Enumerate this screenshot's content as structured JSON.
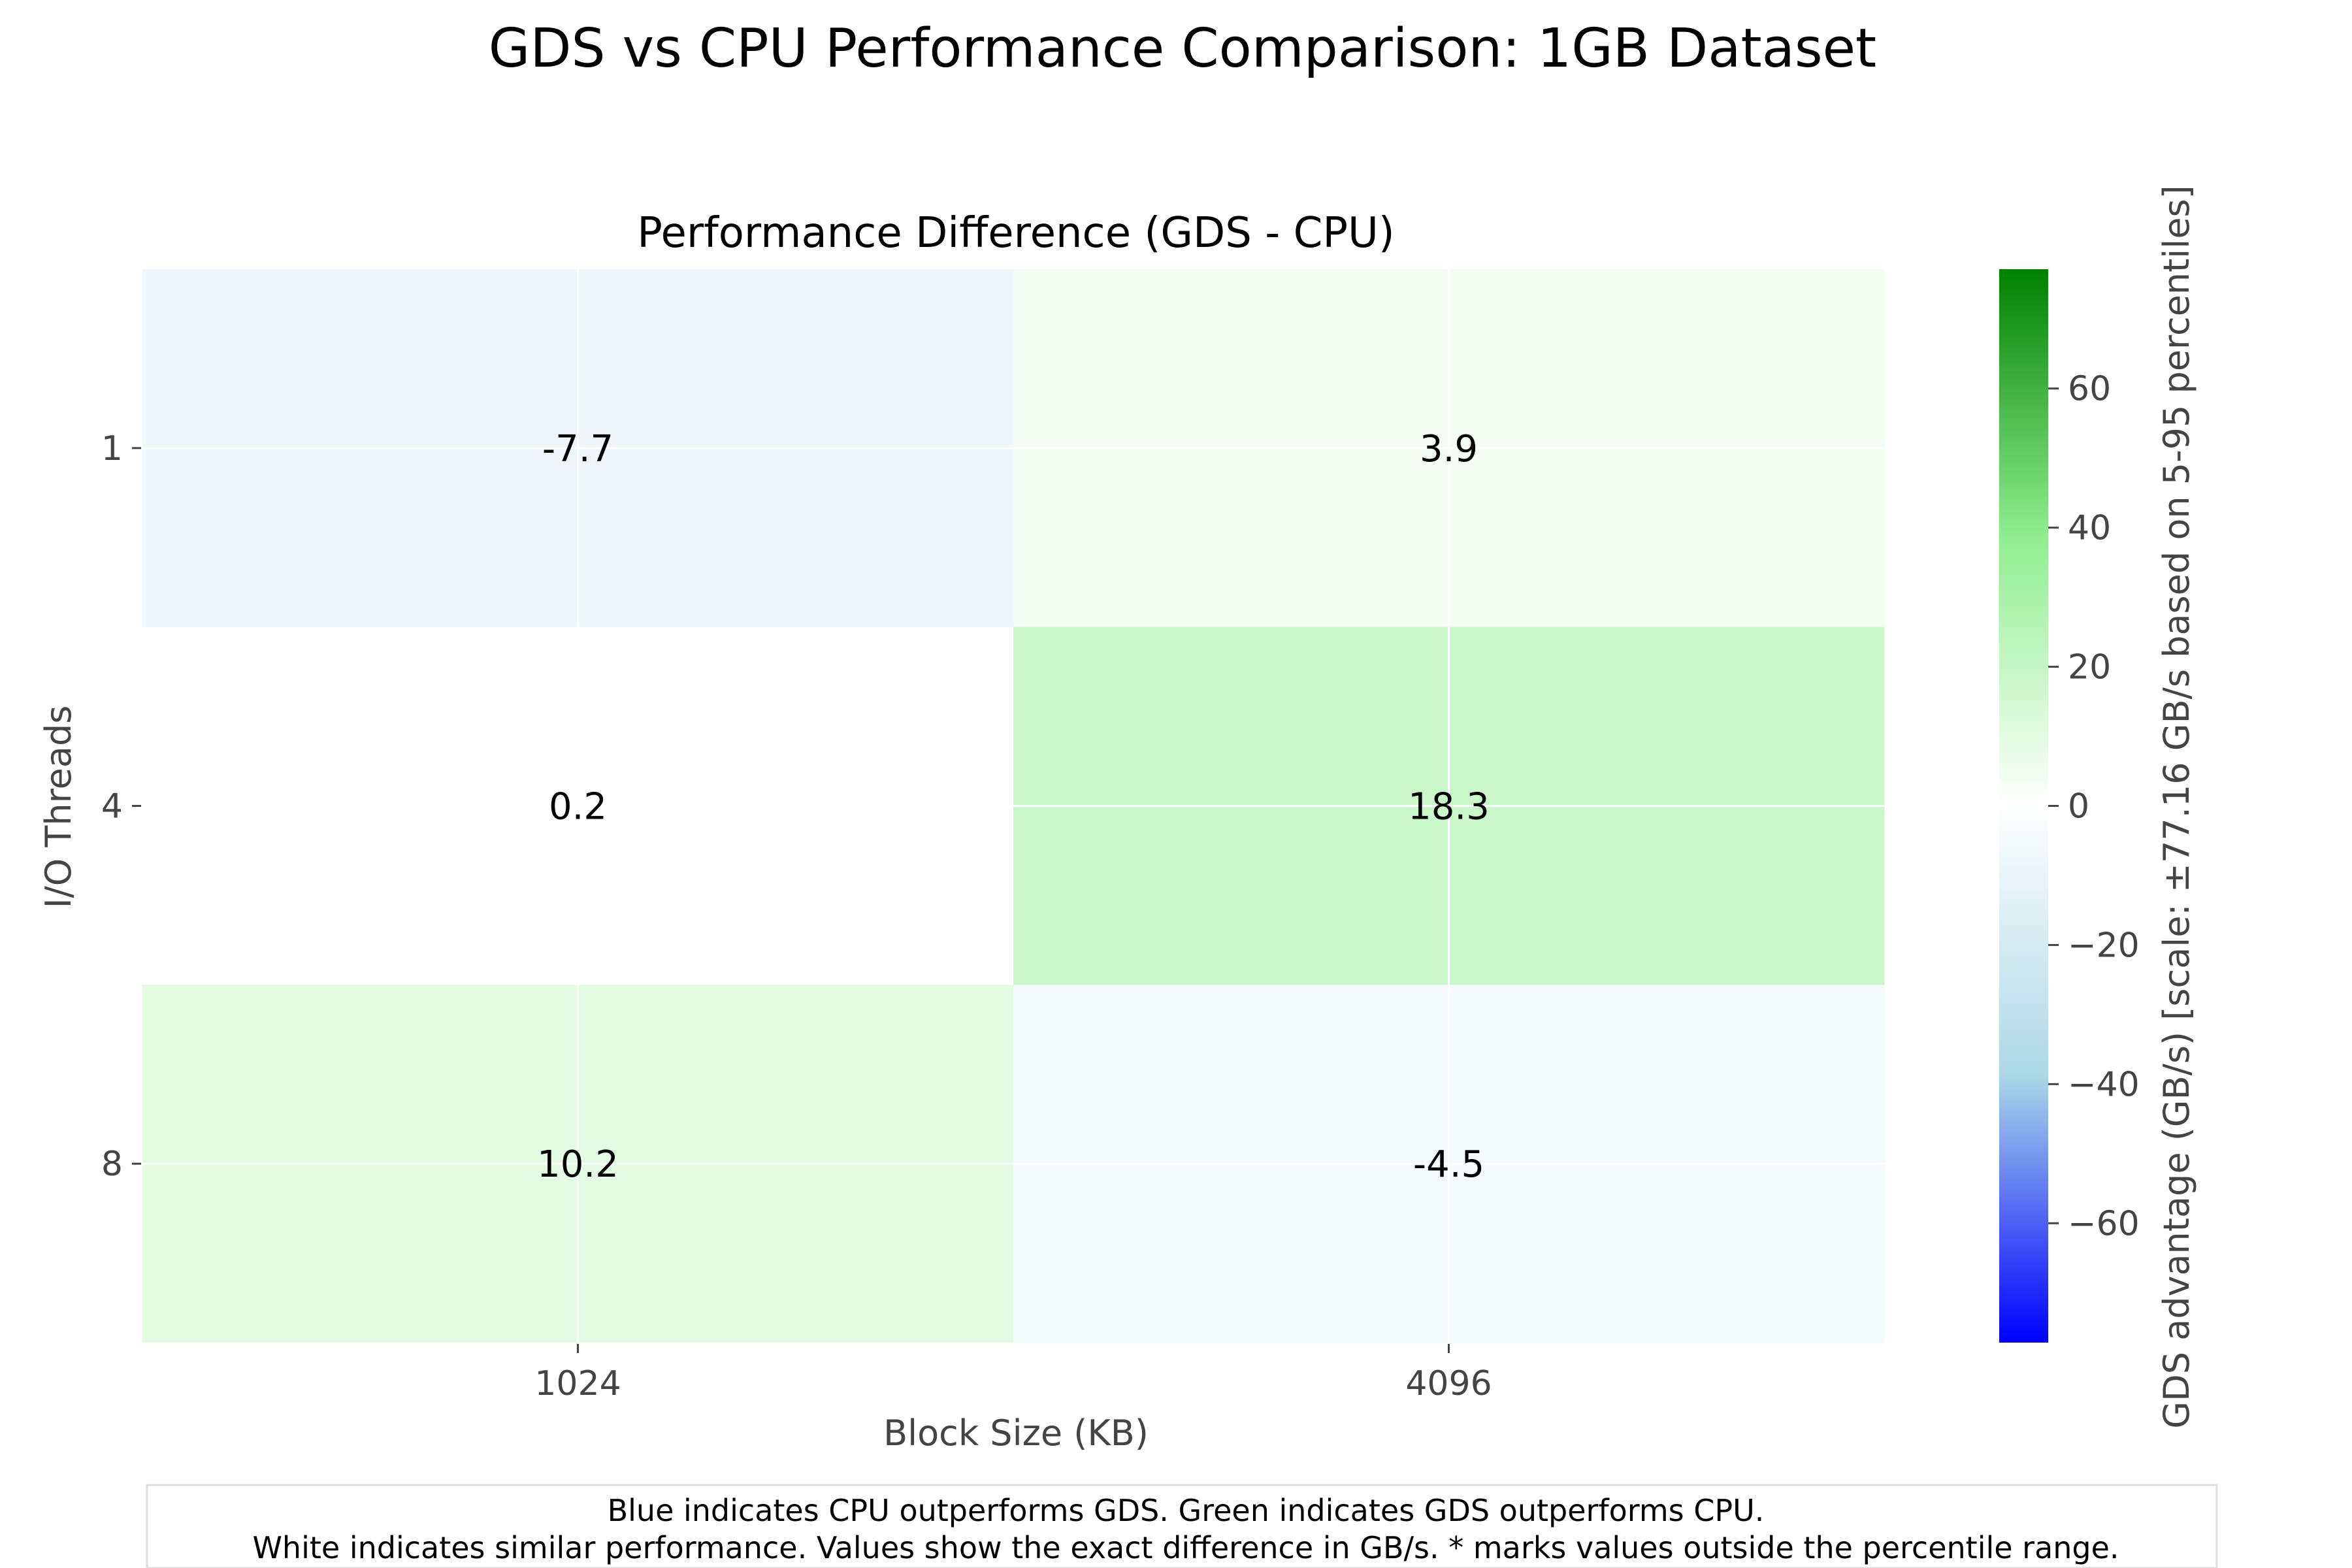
{
  "chart_data": {
    "type": "heatmap",
    "title": "GDS vs CPU Performance Comparison: 1GB Dataset",
    "subtitle": "Performance Difference (GDS - CPU)",
    "xlabel": "Block Size (KB)",
    "ylabel": "I/O Threads",
    "x_categories": [
      "1024",
      "4096"
    ],
    "y_categories": [
      "1",
      "4",
      "8"
    ],
    "values": [
      [
        -7.7,
        3.9
      ],
      [
        0.2,
        18.3
      ],
      [
        10.2,
        -4.5
      ]
    ],
    "value_labels": [
      [
        "-7.7",
        "3.9"
      ],
      [
        "0.2",
        "18.3"
      ],
      [
        "10.2",
        "-4.5"
      ]
    ],
    "colorbar": {
      "label": "GDS advantage (GB/s) [scale: ±77.16 GB/s based on 5-95 percentiles]",
      "range": [
        -77.16,
        77.16
      ],
      "ticks": [
        {
          "value": 60,
          "label": "60"
        },
        {
          "value": 40,
          "label": "40"
        },
        {
          "value": 20,
          "label": "20"
        },
        {
          "value": 0,
          "label": "0"
        },
        {
          "value": -20,
          "label": "−20"
        },
        {
          "value": -40,
          "label": "−40"
        },
        {
          "value": -60,
          "label": "−60"
        }
      ],
      "color_stops": [
        {
          "value": -1.0,
          "color": "#0000ff"
        },
        {
          "value": -0.5,
          "color": "#add8e6"
        },
        {
          "value": 0.0,
          "color": "#ffffff"
        },
        {
          "value": 0.5,
          "color": "#90ee90"
        },
        {
          "value": 1.0,
          "color": "#008000"
        }
      ]
    },
    "grid": true,
    "caption_lines": [
      "Blue indicates CPU outperforms GDS. Green indicates GDS outperforms CPU.",
      "White indicates similar performance. Values show the exact difference in GB/s. * marks values outside the percentile range."
    ]
  }
}
